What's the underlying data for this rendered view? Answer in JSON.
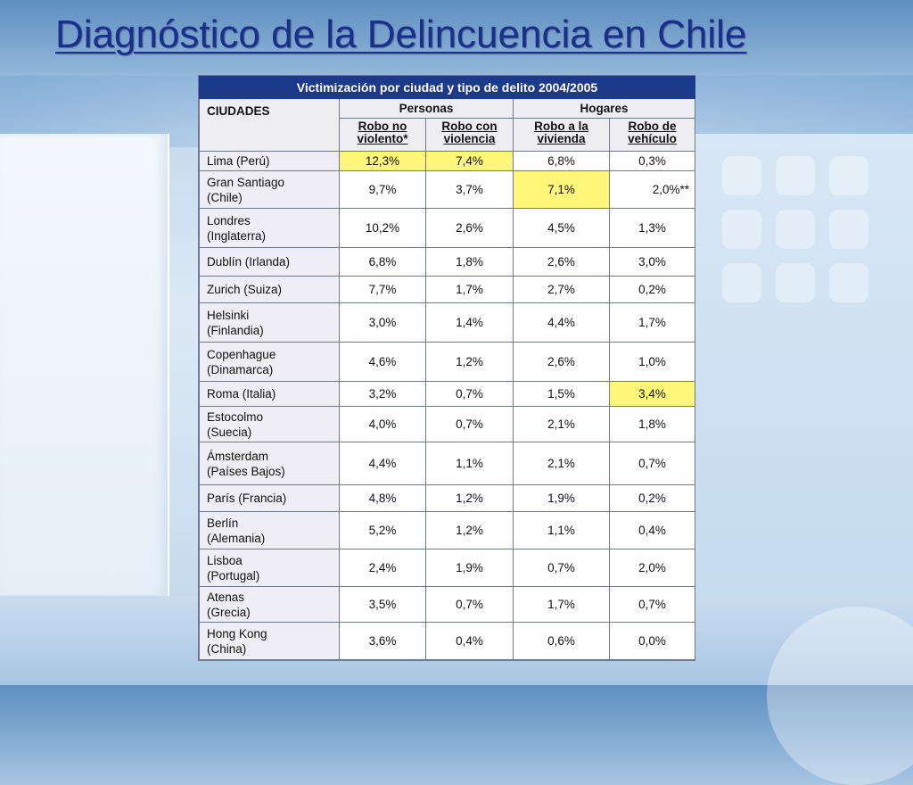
{
  "slide": {
    "title": "Diagnóstico de la Delincuencia en Chile"
  },
  "colors": {
    "title": "#1a2f8c",
    "table_header": "#1b3a8a",
    "highlight": "#fff67a"
  },
  "table": {
    "caption": "Victimización por ciudad y tipo de delito 2004/2005",
    "city_header": "CIUDADES",
    "groups": [
      "Personas",
      "Hogares"
    ],
    "columns": [
      [
        "Robo no",
        "violento*"
      ],
      [
        "Robo con",
        "violencia"
      ],
      [
        "Robo a la",
        "vivienda"
      ],
      [
        "Robo de",
        "vehículo"
      ]
    ],
    "rows": [
      {
        "city": [
          "Lima (Perú)"
        ],
        "values": [
          "12,3%",
          "7,4%",
          "6,8%",
          "0,3%"
        ],
        "highlight": [
          0,
          1
        ]
      },
      {
        "city": [
          "Gran Santiago",
          "(Chile)"
        ],
        "values": [
          "9,7%",
          "3,7%",
          "7,1%",
          "2,0%**"
        ],
        "highlight": [
          2
        ]
      },
      {
        "city": [
          "Londres",
          "(Inglaterra)"
        ],
        "values": [
          "10,2%",
          "2,6%",
          "4,5%",
          "1,3%"
        ],
        "highlight": []
      },
      {
        "city": [
          "Dublín (Irlanda)"
        ],
        "values": [
          "6,8%",
          "1,8%",
          "2,6%",
          "3,0%"
        ],
        "highlight": []
      },
      {
        "city": [
          "Zurich (Suiza)"
        ],
        "values": [
          "7,7%",
          "1,7%",
          "2,7%",
          "0,2%"
        ],
        "highlight": []
      },
      {
        "city": [
          "Helsinki",
          "(Finlandia)"
        ],
        "values": [
          "3,0%",
          "1,4%",
          "4,4%",
          "1,7%"
        ],
        "highlight": []
      },
      {
        "city": [
          "Copenhague",
          "(Dinamarca)"
        ],
        "values": [
          "4,6%",
          "1,2%",
          "2,6%",
          "1,0%"
        ],
        "highlight": []
      },
      {
        "city": [
          "Roma (Italia)"
        ],
        "values": [
          "3,2%",
          "0,7%",
          "1,5%",
          "3,4%"
        ],
        "highlight": [
          3
        ]
      },
      {
        "city": [
          "Estocolmo",
          "(Suecia)"
        ],
        "values": [
          "4,0%",
          "0,7%",
          "2,1%",
          "1,8%"
        ],
        "highlight": []
      },
      {
        "city": [
          "Ámsterdam",
          "(Países Bajos)"
        ],
        "values": [
          "4,4%",
          "1,1%",
          "2,1%",
          "0,7%"
        ],
        "highlight": []
      },
      {
        "city": [
          "París (Francia)"
        ],
        "values": [
          "4,8%",
          "1,2%",
          "1,9%",
          "0,2%"
        ],
        "highlight": []
      },
      {
        "city": [
          "Berlín",
          "(Alemania)"
        ],
        "values": [
          "5,2%",
          "1,2%",
          "1,1%",
          "0,4%"
        ],
        "highlight": []
      },
      {
        "city": [
          "Lisboa",
          "(Portugal)"
        ],
        "values": [
          "2,4%",
          "1,9%",
          "0,7%",
          "2,0%"
        ],
        "highlight": []
      },
      {
        "city": [
          "Atenas",
          "(Grecia)"
        ],
        "values": [
          "3,5%",
          "0,7%",
          "1,7%",
          "0,7%"
        ],
        "highlight": []
      },
      {
        "city": [
          "Hong Kong",
          "(China)"
        ],
        "values": [
          "3,6%",
          "0,4%",
          "0,6%",
          "0,0%"
        ],
        "highlight": []
      }
    ]
  }
}
